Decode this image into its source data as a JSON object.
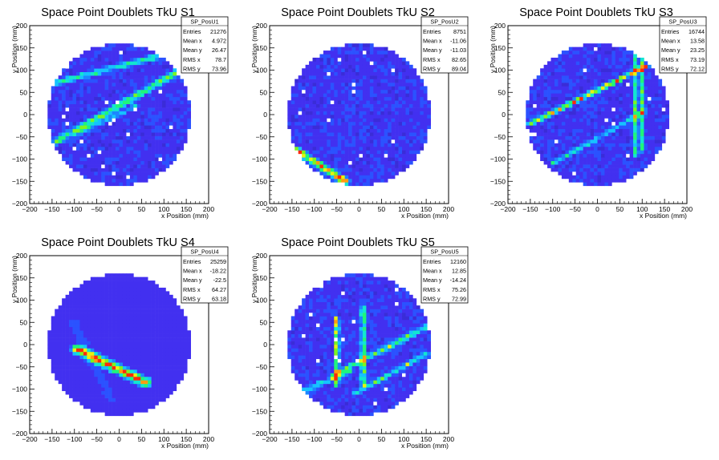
{
  "chart_data": [
    {
      "type": "heatmap",
      "title": "Space Point Doublets TkU S1",
      "xlabel": "x Position (mm)",
      "ylabel": "y Position (mm)",
      "xlim": [
        -200,
        200
      ],
      "ylim": [
        -200,
        200
      ],
      "x_ticks": [
        "−200",
        "−150",
        "−100",
        "−50",
        "0",
        "50",
        "100",
        "150",
        "200"
      ],
      "y_ticks": [
        "200",
        "150",
        "100",
        "50",
        "0",
        "−50",
        "−100",
        "−150",
        "−200"
      ],
      "stats": {
        "name": "SP_PosU1",
        "entries": "21276",
        "mean_x": "4.972",
        "mean_y": "26.47",
        "rms_x": "78.7",
        "rms_y": "73.96"
      },
      "stats_labels": {
        "entries": "Entries",
        "mean_x": "Mean x",
        "mean_y": "Mean y",
        "rms_x": "RMS x",
        "rms_y": "RMS y"
      },
      "disk_radius_mm": 160,
      "features": [
        {
          "kind": "line",
          "x1": -140,
          "y1": -60,
          "x2": 155,
          "y2": 110,
          "intensity": 0.55,
          "width": 12
        },
        {
          "kind": "line",
          "x1": -150,
          "y1": 70,
          "x2": 120,
          "y2": 140,
          "intensity": 0.45,
          "width": 10
        },
        {
          "kind": "line",
          "x1": -90,
          "y1": -40,
          "x2": 40,
          "y2": 20,
          "intensity": 0.3,
          "width": 8
        }
      ]
    },
    {
      "type": "heatmap",
      "title": "Space Point Doublets TkU S2",
      "xlabel": "x Position (mm)",
      "ylabel": "y Position (mm)",
      "xlim": [
        -200,
        200
      ],
      "ylim": [
        -200,
        200
      ],
      "x_ticks": [
        "−200",
        "−150",
        "−100",
        "−50",
        "0",
        "50",
        "100",
        "150",
        "200"
      ],
      "y_ticks": [
        "200",
        "150",
        "100",
        "50",
        "0",
        "−50",
        "−100",
        "−150",
        "−200"
      ],
      "stats": {
        "name": "SP_PosU2",
        "entries": "8751",
        "mean_x": "-11.06",
        "mean_y": "-11.03",
        "rms_x": "82.65",
        "rms_y": "89.04"
      },
      "stats_labels": {
        "entries": "Entries",
        "mean_x": "Mean x",
        "mean_y": "Mean y",
        "rms_x": "RMS x",
        "rms_y": "RMS y"
      },
      "disk_radius_mm": 160,
      "features": [
        {
          "kind": "line",
          "x1": -140,
          "y1": -80,
          "x2": -30,
          "y2": -150,
          "intensity": 0.85,
          "width": 12
        }
      ]
    },
    {
      "type": "heatmap",
      "title": "Space Point Doublets TkU S3",
      "xlabel": "x Position (mm)",
      "ylabel": "y Position (mm)",
      "xlim": [
        -200,
        200
      ],
      "ylim": [
        -200,
        200
      ],
      "x_ticks": [
        "−200",
        "−150",
        "−100",
        "−50",
        "0",
        "50",
        "100",
        "150",
        "200"
      ],
      "y_ticks": [
        "200",
        "150",
        "100",
        "50",
        "0",
        "−50",
        "−100",
        "−150",
        "−200"
      ],
      "stats": {
        "name": "SP_PosU3",
        "entries": "16744",
        "mean_x": "13.58",
        "mean_y": "23.25",
        "rms_x": "73.19",
        "rms_y": "72.12"
      },
      "stats_labels": {
        "entries": "Entries",
        "mean_x": "Mean x",
        "mean_y": "Mean y",
        "rms_x": "RMS x",
        "rms_y": "RMS y"
      },
      "disk_radius_mm": 160,
      "features": [
        {
          "kind": "line",
          "x1": -150,
          "y1": -20,
          "x2": 110,
          "y2": 110,
          "intensity": 0.75,
          "width": 8
        },
        {
          "kind": "line",
          "x1": -100,
          "y1": -110,
          "x2": 110,
          "y2": 10,
          "intensity": 0.4,
          "width": 8
        },
        {
          "kind": "line",
          "x1": 85,
          "y1": -90,
          "x2": 85,
          "y2": 130,
          "intensity": 0.45,
          "width": 10
        },
        {
          "kind": "line",
          "x1": 100,
          "y1": -80,
          "x2": 100,
          "y2": 120,
          "intensity": 0.45,
          "width": 8
        }
      ]
    },
    {
      "type": "heatmap",
      "title": "Space Point Doublets TkU S4",
      "xlabel": "x Position (mm)",
      "ylabel": "y Position (mm)",
      "xlim": [
        -200,
        200
      ],
      "ylim": [
        -200,
        200
      ],
      "x_ticks": [
        "−200",
        "−150",
        "−100",
        "−50",
        "0",
        "50",
        "100",
        "150",
        "200"
      ],
      "y_ticks": [
        "200",
        "150",
        "100",
        "50",
        "0",
        "−50",
        "−100",
        "−150",
        "−200"
      ],
      "stats": {
        "name": "SP_PosU4",
        "entries": "25259",
        "mean_x": "-18.22",
        "mean_y": "-22.5",
        "rms_x": "64.27",
        "rms_y": "63.18"
      },
      "stats_labels": {
        "entries": "Entries",
        "mean_x": "Mean x",
        "mean_y": "Mean y",
        "rms_x": "RMS x",
        "rms_y": "RMS y"
      },
      "disk_radius_mm": 160,
      "features": [
        {
          "kind": "line",
          "x1": -95,
          "y1": -10,
          "x2": 60,
          "y2": -85,
          "intensity": 0.9,
          "width": 16
        },
        {
          "kind": "line",
          "x1": -100,
          "y1": 50,
          "x2": -20,
          "y2": -120,
          "intensity": 0.12,
          "width": 20
        }
      ]
    },
    {
      "type": "heatmap",
      "title": "Space Point Doublets TkU S5",
      "xlabel": "x Position (mm)",
      "ylabel": "y Position (mm)",
      "xlim": [
        -200,
        200
      ],
      "ylim": [
        -200,
        200
      ],
      "x_ticks": [
        "−200",
        "−150",
        "−100",
        "−50",
        "0",
        "50",
        "100",
        "150",
        "200"
      ],
      "y_ticks": [
        "200",
        "150",
        "100",
        "50",
        "0",
        "−50",
        "−100",
        "−150",
        "−200"
      ],
      "stats": {
        "name": "SP_PosU5",
        "entries": "12160",
        "mean_x": "12.85",
        "mean_y": "-14.24",
        "rms_x": "75.26",
        "rms_y": "72.99"
      },
      "stats_labels": {
        "entries": "Entries",
        "mean_x": "Mean x",
        "mean_y": "Mean y",
        "rms_x": "RMS x",
        "rms_y": "RMS y"
      },
      "disk_radius_mm": 160,
      "features": [
        {
          "kind": "line",
          "x1": -50,
          "y1": -90,
          "x2": -50,
          "y2": 60,
          "intensity": 0.75,
          "width": 8
        },
        {
          "kind": "line",
          "x1": 10,
          "y1": -90,
          "x2": 10,
          "y2": 80,
          "intensity": 0.55,
          "width": 10
        },
        {
          "kind": "line",
          "x1": -60,
          "y1": -70,
          "x2": 150,
          "y2": 40,
          "intensity": 0.5,
          "width": 10
        },
        {
          "kind": "line",
          "x1": -10,
          "y1": -110,
          "x2": 150,
          "y2": -20,
          "intensity": 0.45,
          "width": 8
        },
        {
          "kind": "line",
          "x1": -140,
          "y1": -110,
          "x2": -20,
          "y2": -60,
          "intensity": 0.35,
          "width": 10
        }
      ]
    }
  ],
  "palette": [
    "#3a2cd8",
    "#4230f0",
    "#2b52ff",
    "#1c86ff",
    "#16c2ff",
    "#12e6d0",
    "#1ff57a",
    "#7cf520",
    "#e8f010",
    "#ff9b10",
    "#ff2a0a"
  ]
}
